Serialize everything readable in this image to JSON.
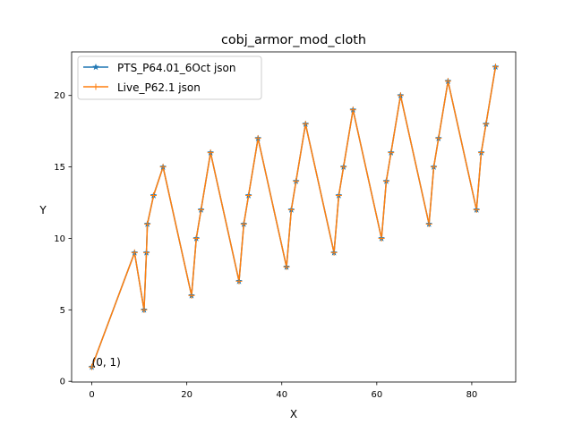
{
  "chart_data": {
    "type": "line",
    "title": "cobj_armor_mod_cloth",
    "xlabel": "X",
    "ylabel": "Y",
    "xlim": [
      -4.25,
      89.25
    ],
    "ylim": [
      -0.05,
      23.05
    ],
    "xticks": [
      0,
      20,
      40,
      60,
      80
    ],
    "yticks": [
      0,
      5,
      10,
      15,
      20
    ],
    "grid": false,
    "legend_position": "upper left",
    "annotation": {
      "text": "(0, 1)",
      "x": 0,
      "y": 1
    },
    "series": [
      {
        "name": "PTS_P64.01_6Oct json",
        "color": "#1f77b4",
        "marker": "star",
        "x": [
          0,
          9,
          11,
          11.5,
          11.7,
          13,
          15,
          21,
          22,
          23,
          25,
          31,
          32,
          33,
          35,
          41,
          42,
          43,
          45,
          51,
          52,
          53,
          55,
          61,
          62,
          63,
          65,
          71,
          72,
          73,
          75,
          81,
          82,
          83,
          85
        ],
        "y": [
          1,
          9,
          5,
          9,
          11,
          13,
          15,
          6,
          10,
          12,
          16,
          7,
          11,
          13,
          17,
          8,
          12,
          14,
          18,
          9,
          13,
          15,
          19,
          10,
          14,
          16,
          20,
          11,
          15,
          17,
          21,
          12,
          16,
          18,
          22
        ]
      },
      {
        "name": "Live_P62.1 json",
        "color": "#ff7f0e",
        "marker": "plus",
        "x": [
          0,
          9,
          11,
          11.5,
          11.7,
          13,
          15,
          21,
          22,
          23,
          25,
          31,
          32,
          33,
          35,
          41,
          42,
          43,
          45,
          51,
          52,
          53,
          55,
          61,
          62,
          63,
          65,
          71,
          72,
          73,
          75,
          81,
          82,
          83,
          85
        ],
        "y": [
          1,
          9,
          5,
          9,
          11,
          13,
          15,
          6,
          10,
          12,
          16,
          7,
          11,
          13,
          17,
          8,
          12,
          14,
          18,
          9,
          13,
          15,
          19,
          10,
          14,
          16,
          20,
          11,
          15,
          17,
          21,
          12,
          16,
          18,
          22
        ]
      }
    ]
  }
}
